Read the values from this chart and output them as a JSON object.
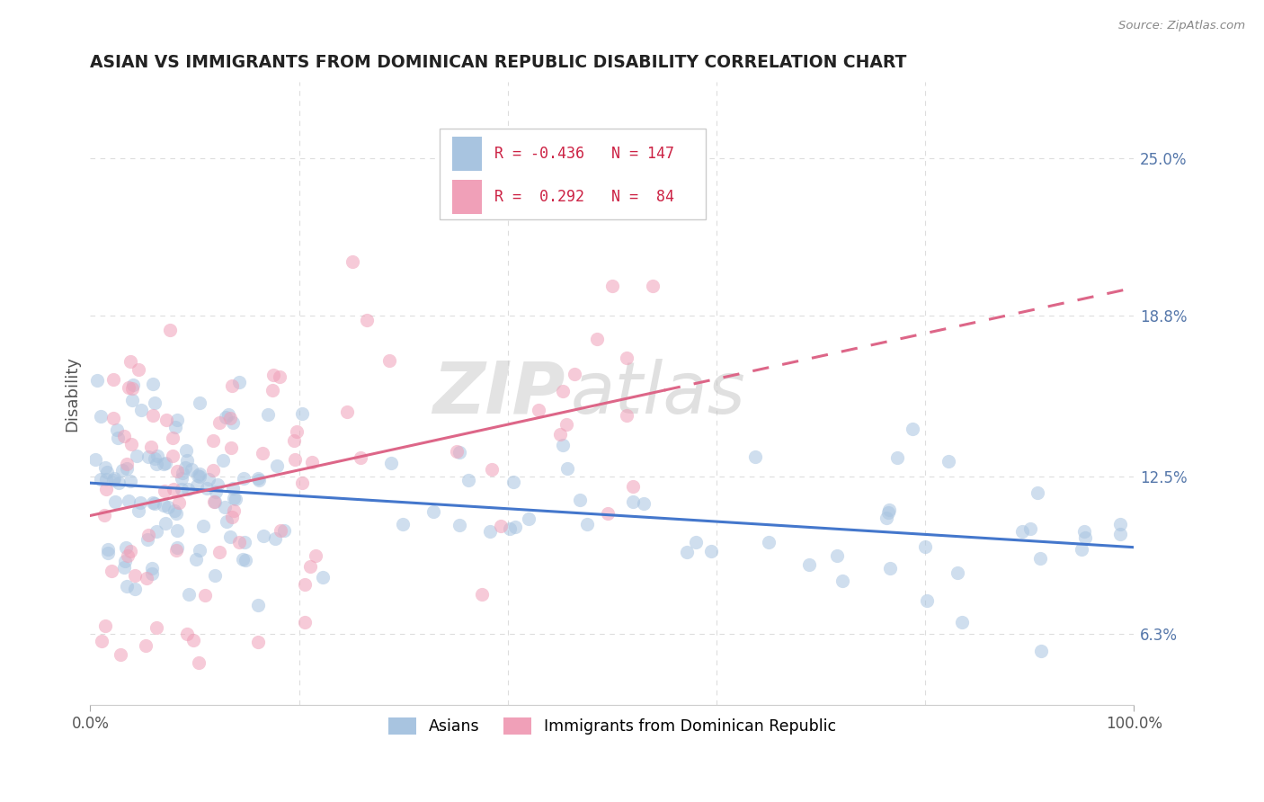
{
  "title": "ASIAN VS IMMIGRANTS FROM DOMINICAN REPUBLIC DISABILITY CORRELATION CHART",
  "source": "Source: ZipAtlas.com",
  "ylabel": "Disability",
  "watermark": "ZIP",
  "watermark2": "atlas",
  "xlim": [
    0.0,
    100.0
  ],
  "ylim": [
    3.5,
    28.0
  ],
  "yticks": [
    6.3,
    12.5,
    18.8,
    25.0
  ],
  "blue_R": -0.436,
  "blue_N": 147,
  "pink_R": 0.292,
  "pink_N": 84,
  "blue_color": "#a8c4e0",
  "pink_color": "#f0a0b8",
  "blue_line_color": "#4477cc",
  "pink_line_color": "#dd6688",
  "legend_label_blue": "Asians",
  "legend_label_pink": "Immigrants from Dominican Republic",
  "background_color": "#ffffff",
  "grid_color": "#dddddd"
}
